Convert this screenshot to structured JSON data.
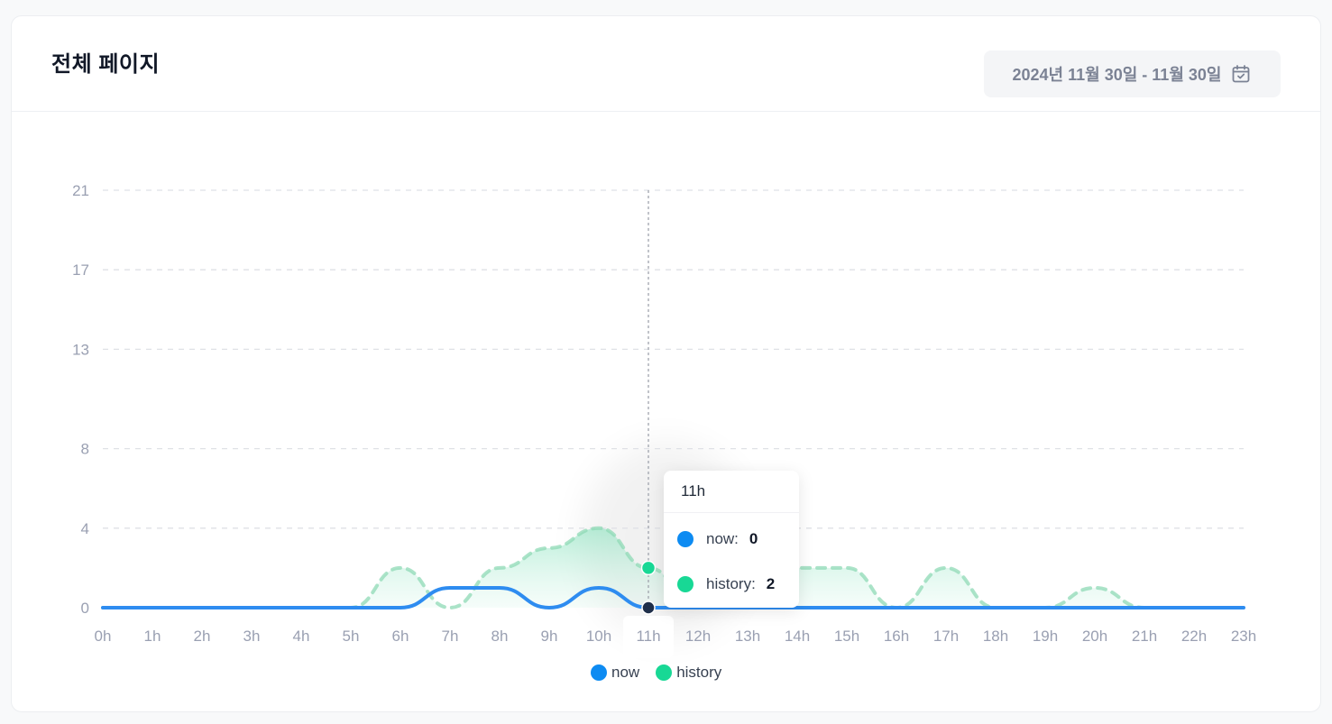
{
  "header": {
    "title": "전체 페이지",
    "date_range": "2024년 11월 30일 - 11월 30일",
    "calendar_icon": "calendar-check-icon"
  },
  "colors": {
    "now": "#2e8cf0",
    "history": "#8fd9b6",
    "history_dot": "#18d895",
    "grid": "#dfe1e6"
  },
  "chart_data": {
    "type": "area",
    "x": [
      "0h",
      "1h",
      "2h",
      "3h",
      "4h",
      "5h",
      "6h",
      "7h",
      "8h",
      "9h",
      "10h",
      "11h",
      "12h",
      "13h",
      "14h",
      "15h",
      "16h",
      "17h",
      "18h",
      "19h",
      "20h",
      "21h",
      "22h",
      "23h"
    ],
    "y_ticks": [
      0,
      4,
      8,
      13,
      17,
      21
    ],
    "ylim": [
      0,
      21
    ],
    "grid": true,
    "legend": "bottom-center",
    "highlighted_x": "11h",
    "series": [
      {
        "name": "now",
        "style": "solid",
        "values": [
          0,
          0,
          0,
          0,
          0,
          0,
          0,
          1,
          1,
          0,
          1,
          0,
          0,
          0,
          0,
          0,
          0,
          0,
          0,
          0,
          0,
          0,
          0,
          0
        ]
      },
      {
        "name": "history",
        "style": "dashed",
        "values": [
          0,
          0,
          0,
          0,
          0,
          0,
          2,
          0,
          2,
          3,
          4,
          2,
          0,
          2,
          2,
          2,
          0,
          2,
          0,
          0,
          1,
          0,
          0,
          0
        ]
      }
    ]
  },
  "tooltip": {
    "title": "11h",
    "rows": [
      {
        "label": "now:",
        "value": "0"
      },
      {
        "label": "history:",
        "value": "2"
      }
    ]
  },
  "legend": [
    {
      "label": "now"
    },
    {
      "label": "history"
    }
  ]
}
